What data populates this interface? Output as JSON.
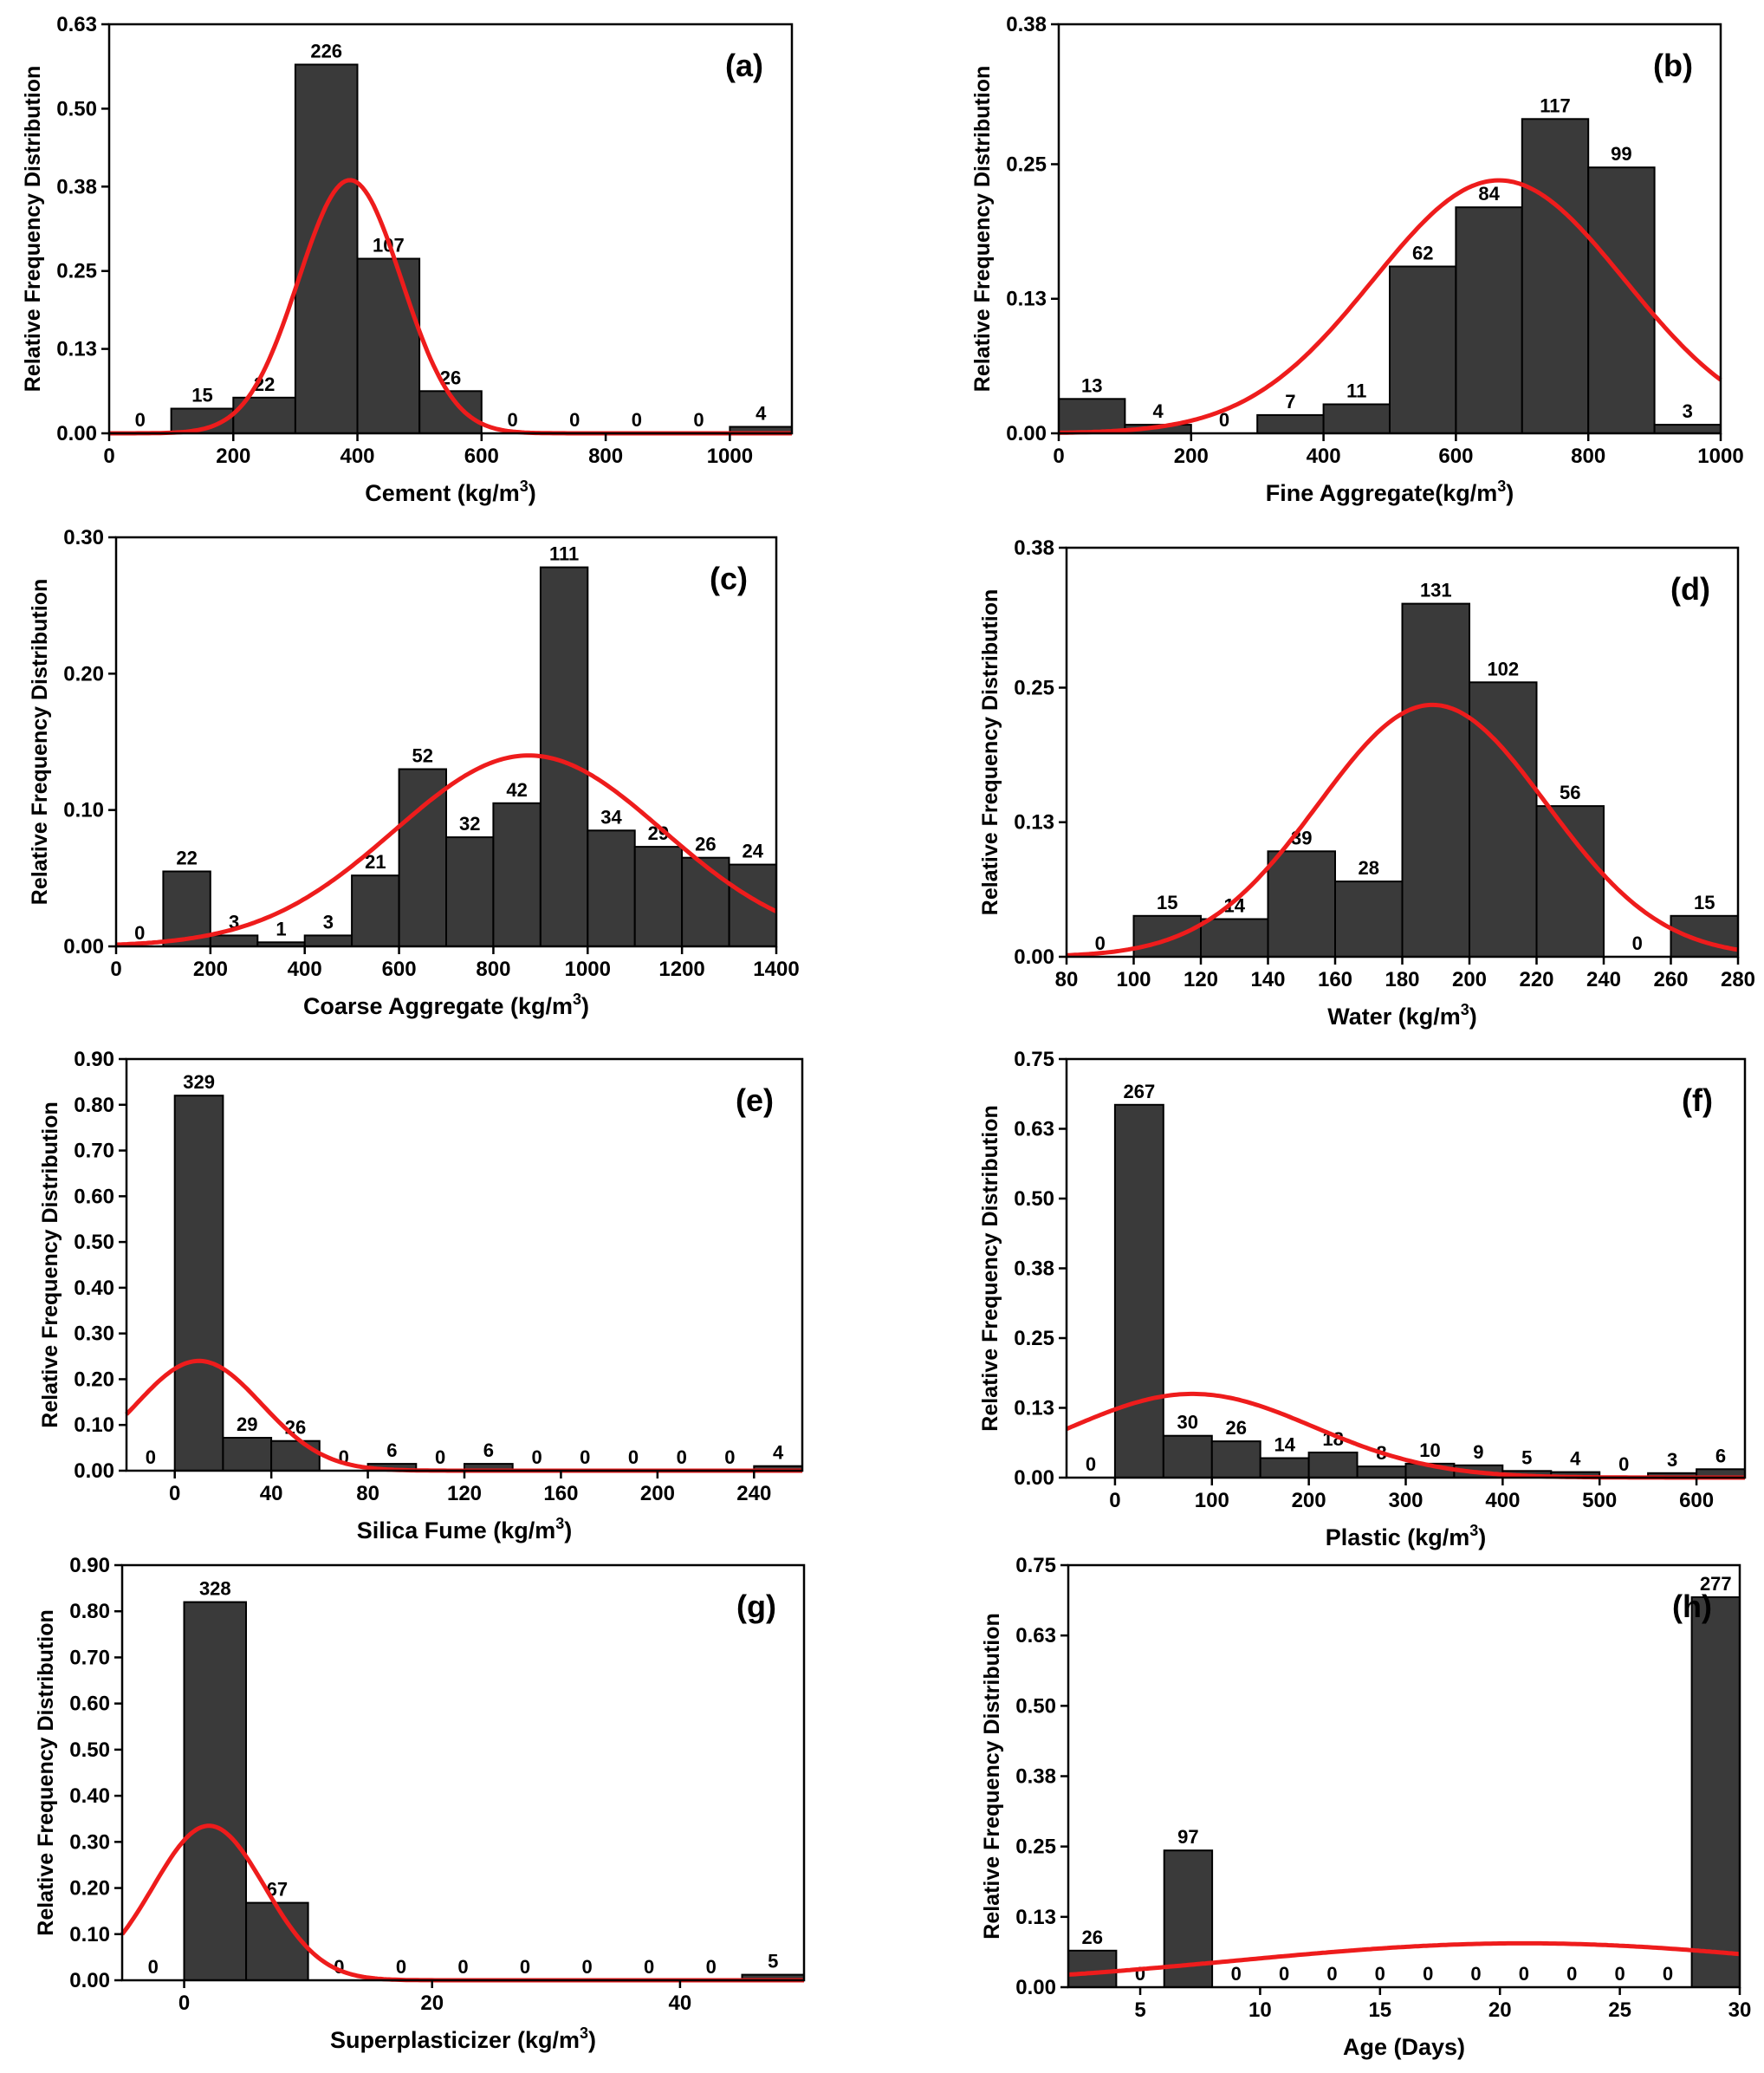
{
  "figure": {
    "ylabel": "Relative Frequency Distribution",
    "bar_color": "#3a3a3a",
    "curve_color": "#ee1c1c"
  },
  "chart_data": [
    {
      "type": "bar",
      "panel": "(a)",
      "xlabel": "Cement (kg/m",
      "xlabel_sup": "3",
      "xlabel_suffix": ")",
      "xlim": [
        0,
        1100
      ],
      "ylim": [
        0,
        0.63
      ],
      "xticks": [
        "0",
        "200",
        "400",
        "600",
        "800",
        "1000"
      ],
      "xtick_values": [
        0,
        200,
        400,
        600,
        800,
        1000
      ],
      "yticks": [
        "0.00",
        "0.13",
        "0.25",
        "0.38",
        "0.50",
        "0.63"
      ],
      "ytick_values": [
        0,
        0.13,
        0.25,
        0.38,
        0.5,
        0.63
      ],
      "bins": [
        [
          0,
          100
        ],
        [
          100,
          200
        ],
        [
          200,
          300
        ],
        [
          300,
          400
        ],
        [
          400,
          500
        ],
        [
          500,
          600
        ],
        [
          600,
          700
        ],
        [
          700,
          800
        ],
        [
          800,
          900
        ],
        [
          900,
          1000
        ],
        [
          1000,
          1100
        ]
      ],
      "counts": [
        0,
        15,
        22,
        226,
        107,
        26,
        0,
        0,
        0,
        0,
        4
      ],
      "count_labels": [
        "0",
        "15",
        "22",
        "226",
        "107",
        "26",
        "0",
        "0",
        "0",
        "0",
        "4"
      ],
      "relative_frequency": [
        0,
        0.038,
        0.055,
        0.568,
        0.269,
        0.065,
        0,
        0,
        0,
        0,
        0.01
      ],
      "normal_fit": {
        "mean": 388,
        "peak": 0.39,
        "sd": 83
      }
    },
    {
      "type": "bar",
      "panel": "(b)",
      "xlabel": "Fine Aggregate(kg/m",
      "xlabel_sup": "3",
      "xlabel_suffix": ")",
      "xlim": [
        0,
        1000
      ],
      "ylim": [
        0,
        0.38
      ],
      "xticks": [
        "0",
        "200",
        "400",
        "600",
        "800",
        "1000"
      ],
      "xtick_values": [
        0,
        200,
        400,
        600,
        800,
        1000
      ],
      "yticks": [
        "0.00",
        "0.13",
        "0.25",
        "0.38"
      ],
      "ytick_values": [
        0,
        0.125,
        0.25,
        0.38
      ],
      "bins": [
        [
          0,
          100
        ],
        [
          100,
          200
        ],
        [
          200,
          300
        ],
        [
          300,
          400
        ],
        [
          400,
          500
        ],
        [
          500,
          600
        ],
        [
          600,
          700
        ],
        [
          700,
          800
        ],
        [
          800,
          900
        ],
        [
          900,
          1000
        ]
      ],
      "counts": [
        13,
        4,
        0,
        7,
        11,
        62,
        84,
        117,
        99,
        3
      ],
      "count_labels": [
        "13",
        "4",
        "0",
        "7",
        "11",
        "62",
        "84",
        "117",
        "99",
        "3"
      ],
      "relative_frequency": [
        0.032,
        0.008,
        0,
        0.017,
        0.027,
        0.155,
        0.21,
        0.292,
        0.247,
        0.008
      ],
      "normal_fit": {
        "mean": 665,
        "peak": 0.235,
        "sd": 190
      }
    },
    {
      "type": "bar",
      "panel": "(c)",
      "xlabel": "Coarse Aggregate (kg/m",
      "xlabel_sup": "3",
      "xlabel_suffix": ")",
      "xlim": [
        0,
        1400
      ],
      "ylim": [
        0,
        0.3
      ],
      "xticks": [
        "0",
        "200",
        "400",
        "600",
        "800",
        "1000",
        "1200",
        "1400"
      ],
      "xtick_values": [
        0,
        200,
        400,
        600,
        800,
        1000,
        1200,
        1400
      ],
      "yticks": [
        "0.00",
        "0.10",
        "0.20",
        "0.30"
      ],
      "ytick_values": [
        0,
        0.1,
        0.2,
        0.3
      ],
      "bins": [
        [
          0,
          100
        ],
        [
          100,
          200
        ],
        [
          200,
          300
        ],
        [
          300,
          400
        ],
        [
          400,
          500
        ],
        [
          500,
          600
        ],
        [
          600,
          700
        ],
        [
          700,
          800
        ],
        [
          800,
          900
        ],
        [
          900,
          1000
        ],
        [
          1000,
          1100
        ],
        [
          1100,
          1200
        ],
        [
          1200,
          1300
        ],
        [
          1300,
          1400
        ]
      ],
      "counts": [
        0,
        22,
        3,
        1,
        3,
        21,
        52,
        32,
        42,
        111,
        34,
        29,
        26,
        24
      ],
      "count_labels": [
        "0",
        "22",
        "3",
        "1",
        "3",
        "21",
        "52",
        "32",
        "42",
        "111",
        "34",
        "29",
        "26",
        "24"
      ],
      "relative_frequency": [
        0,
        0.055,
        0.008,
        0.003,
        0.008,
        0.052,
        0.13,
        0.08,
        0.105,
        0.278,
        0.085,
        0.073,
        0.065,
        0.06
      ],
      "normal_fit": {
        "mean": 875,
        "peak": 0.14,
        "sd": 285
      }
    },
    {
      "type": "bar",
      "panel": "(d)",
      "xlabel": "Water (kg/m",
      "xlabel_sup": "3",
      "xlabel_suffix": ")",
      "xlim": [
        80,
        280
      ],
      "ylim": [
        0,
        0.38
      ],
      "xticks": [
        "80",
        "100",
        "120",
        "140",
        "160",
        "180",
        "200",
        "220",
        "240",
        "260",
        "280"
      ],
      "xtick_values": [
        80,
        100,
        120,
        140,
        160,
        180,
        200,
        220,
        240,
        260,
        280
      ],
      "yticks": [
        "0.00",
        "0.13",
        "0.25",
        "0.38"
      ],
      "ytick_values": [
        0,
        0.125,
        0.25,
        0.38
      ],
      "bins": [
        [
          80,
          100
        ],
        [
          100,
          120
        ],
        [
          120,
          140
        ],
        [
          140,
          160
        ],
        [
          160,
          180
        ],
        [
          180,
          200
        ],
        [
          200,
          220
        ],
        [
          220,
          240
        ],
        [
          240,
          260
        ],
        [
          260,
          280
        ]
      ],
      "counts": [
        0,
        15,
        14,
        39,
        28,
        131,
        102,
        56,
        0,
        15
      ],
      "count_labels": [
        "0",
        "15",
        "14",
        "39",
        "28",
        "131",
        "102",
        "56",
        "0",
        "15"
      ],
      "relative_frequency": [
        0,
        0.038,
        0.035,
        0.098,
        0.07,
        0.328,
        0.255,
        0.14,
        0,
        0.038
      ],
      "normal_fit": {
        "mean": 189,
        "peak": 0.234,
        "sd": 34
      }
    },
    {
      "type": "bar",
      "panel": "(e)",
      "xlabel": "Silica Fume (kg/m",
      "xlabel_sup": "3",
      "xlabel_suffix": ")",
      "xlim": [
        -20,
        260
      ],
      "ylim": [
        0,
        0.9
      ],
      "xticks": [
        "0",
        "40",
        "80",
        "120",
        "160",
        "200",
        "240"
      ],
      "xtick_values": [
        0,
        40,
        80,
        120,
        160,
        200,
        240
      ],
      "yticks": [
        "0.00",
        "0.10",
        "0.20",
        "0.30",
        "0.40",
        "0.50",
        "0.60",
        "0.70",
        "0.80",
        "0.90"
      ],
      "ytick_values": [
        0,
        0.1,
        0.2,
        0.3,
        0.4,
        0.5,
        0.6,
        0.7,
        0.8,
        0.9
      ],
      "bins": [
        [
          -20,
          0
        ],
        [
          0,
          20
        ],
        [
          20,
          40
        ],
        [
          40,
          60
        ],
        [
          60,
          80
        ],
        [
          80,
          100
        ],
        [
          100,
          120
        ],
        [
          120,
          140
        ],
        [
          140,
          160
        ],
        [
          160,
          180
        ],
        [
          180,
          200
        ],
        [
          200,
          220
        ],
        [
          220,
          240
        ],
        [
          240,
          260
        ]
      ],
      "counts": [
        0,
        329,
        29,
        26,
        0,
        6,
        0,
        6,
        0,
        0,
        0,
        0,
        0,
        4
      ],
      "count_labels": [
        "0",
        "329",
        "29",
        "26",
        "0",
        "6",
        "0",
        "6",
        "0",
        "0",
        "0",
        "0",
        "0",
        "4"
      ],
      "relative_frequency": [
        0,
        0.82,
        0.072,
        0.065,
        0,
        0.015,
        0,
        0.015,
        0,
        0,
        0,
        0,
        0,
        0.01
      ],
      "normal_fit": {
        "mean": 10,
        "peak": 0.24,
        "sd": 26
      }
    },
    {
      "type": "bar",
      "panel": "(f)",
      "xlabel": "Plastic (kg/m",
      "xlabel_sup": "3",
      "xlabel_suffix": ")",
      "xlim": [
        -50,
        650
      ],
      "ylim": [
        0,
        0.75
      ],
      "xticks": [
        "0",
        "100",
        "200",
        "300",
        "400",
        "500",
        "600"
      ],
      "xtick_values": [
        0,
        100,
        200,
        300,
        400,
        500,
        600
      ],
      "yticks": [
        "0.00",
        "0.13",
        "0.25",
        "0.38",
        "0.50",
        "0.63",
        "0.75"
      ],
      "ytick_values": [
        0,
        0.125,
        0.25,
        0.375,
        0.5,
        0.625,
        0.75
      ],
      "bins": [
        [
          -50,
          0
        ],
        [
          0,
          50
        ],
        [
          50,
          100
        ],
        [
          100,
          150
        ],
        [
          150,
          200
        ],
        [
          200,
          250
        ],
        [
          250,
          300
        ],
        [
          300,
          350
        ],
        [
          350,
          400
        ],
        [
          400,
          450
        ],
        [
          450,
          500
        ],
        [
          500,
          550
        ],
        [
          550,
          600
        ],
        [
          600,
          650
        ]
      ],
      "counts": [
        0,
        267,
        30,
        26,
        14,
        18,
        8,
        10,
        9,
        5,
        4,
        0,
        3,
        6
      ],
      "count_labels": [
        "0",
        "267",
        "30",
        "26",
        "14",
        "18",
        "8",
        "10",
        "9",
        "5",
        "4",
        "0",
        "3",
        "6"
      ],
      "relative_frequency": [
        0,
        0.668,
        0.075,
        0.065,
        0.035,
        0.045,
        0.02,
        0.025,
        0.022,
        0.012,
        0.01,
        0,
        0.008,
        0.015
      ],
      "normal_fit": {
        "mean": 80,
        "peak": 0.15,
        "sd": 125
      }
    },
    {
      "type": "bar",
      "panel": "(g)",
      "xlabel": "Superplasticizer (kg/m",
      "xlabel_sup": "3",
      "xlabel_suffix": ")",
      "xlim": [
        -5,
        50
      ],
      "ylim": [
        0,
        0.9
      ],
      "xticks": [
        "0",
        "20",
        "40"
      ],
      "xtick_values": [
        0,
        20,
        40
      ],
      "yticks": [
        "0.00",
        "0.10",
        "0.20",
        "0.30",
        "0.40",
        "0.50",
        "0.60",
        "0.70",
        "0.80",
        "0.90"
      ],
      "ytick_values": [
        0,
        0.1,
        0.2,
        0.3,
        0.4,
        0.5,
        0.6,
        0.7,
        0.8,
        0.9
      ],
      "bins": [
        [
          -5,
          0
        ],
        [
          0,
          5
        ],
        [
          5,
          10
        ],
        [
          10,
          15
        ],
        [
          15,
          20
        ],
        [
          20,
          25
        ],
        [
          25,
          30
        ],
        [
          30,
          35
        ],
        [
          35,
          40
        ],
        [
          40,
          45
        ],
        [
          45,
          50
        ]
      ],
      "counts": [
        0,
        328,
        67,
        0,
        0,
        0,
        0,
        0,
        0,
        0,
        5
      ],
      "count_labels": [
        "0",
        "328",
        "67",
        "0",
        "0",
        "0",
        "0",
        "0",
        "0",
        "0",
        "5"
      ],
      "relative_frequency": [
        0,
        0.82,
        0.168,
        0,
        0,
        0,
        0,
        0,
        0,
        0,
        0.012
      ],
      "normal_fit": {
        "mean": 2,
        "peak": 0.335,
        "sd": 4.5
      }
    },
    {
      "type": "bar",
      "panel": "(h)",
      "xlabel": "Age (Days)",
      "xlabel_sup": "",
      "xlabel_suffix": "",
      "xlim": [
        2,
        30
      ],
      "ylim": [
        0,
        0.75
      ],
      "xticks": [
        "5",
        "10",
        "15",
        "20",
        "25",
        "30"
      ],
      "xtick_values": [
        5,
        10,
        15,
        20,
        25,
        30
      ],
      "yticks": [
        "0.00",
        "0.13",
        "0.25",
        "0.38",
        "0.50",
        "0.63",
        "0.75"
      ],
      "ytick_values": [
        0,
        0.125,
        0.25,
        0.375,
        0.5,
        0.625,
        0.75
      ],
      "bins": [
        [
          2,
          4
        ],
        [
          4,
          6
        ],
        [
          6,
          8
        ],
        [
          8,
          10
        ],
        [
          10,
          12
        ],
        [
          12,
          14
        ],
        [
          14,
          16
        ],
        [
          16,
          18
        ],
        [
          18,
          20
        ],
        [
          20,
          22
        ],
        [
          22,
          24
        ],
        [
          24,
          26
        ],
        [
          26,
          28
        ],
        [
          28,
          30
        ]
      ],
      "counts": [
        26,
        0,
        97,
        0,
        0,
        0,
        0,
        0,
        0,
        0,
        0,
        0,
        0,
        277
      ],
      "count_labels": [
        "26",
        "0",
        "97",
        "0",
        "0",
        "0",
        "0",
        "0",
        "0",
        "0",
        "0",
        "0",
        "0",
        "277"
      ],
      "relative_frequency": [
        0.065,
        0,
        0.243,
        0,
        0,
        0,
        0,
        0,
        0,
        0,
        0,
        0,
        0,
        0.693
      ],
      "normal_fit": {
        "mean": 21,
        "peak": 0.078,
        "sd": 12
      }
    }
  ]
}
